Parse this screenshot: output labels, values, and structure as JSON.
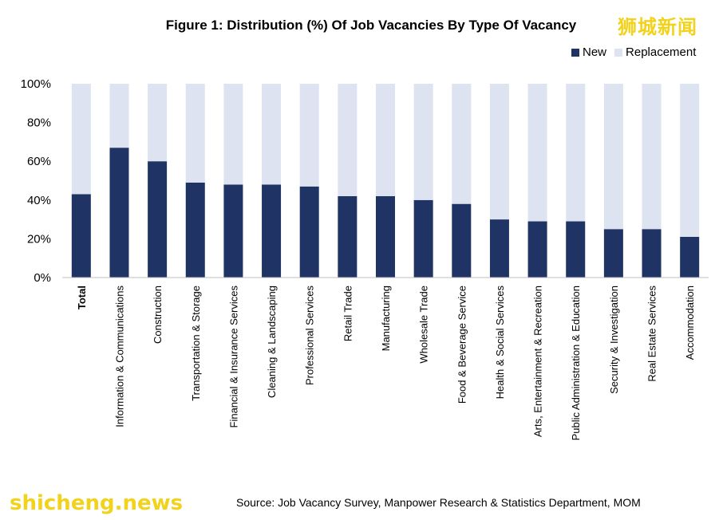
{
  "title": "Figure 1: Distribution (%) Of Job Vacancies By Type Of Vacancy",
  "watermark_top": "狮城新闻",
  "watermark_bottom": "shicheng.news",
  "source": "Source: Job Vacancy Survey, Manpower Research & Statistics Department, MOM",
  "colors": {
    "new": "#1f3364",
    "replacement": "#dde3f0"
  },
  "chart_data": {
    "type": "bar",
    "stacked": true,
    "title": "Figure 1: Distribution (%) Of Job Vacancies By Type Of Vacancy",
    "categories": [
      "Total",
      "Information & Communications",
      "Construction",
      "Transportation & Storage",
      "Financial & Insurance Services",
      "Cleaning & Landscaping",
      "Professional Services",
      "Retail Trade",
      "Manufacturing",
      "Wholesale Trade",
      "Food & Beverage Service",
      "Health & Social Services",
      "Arts, Entertainment & Recreation",
      "Public Administration & Education",
      "Security & Investigation",
      "Real Estate Services",
      "Accommodation"
    ],
    "series": [
      {
        "name": "New",
        "values": [
          43,
          67,
          60,
          49,
          48,
          48,
          47,
          42,
          42,
          40,
          38,
          30,
          29,
          29,
          25,
          25,
          21
        ]
      },
      {
        "name": "Replacement",
        "values": [
          57,
          33,
          40,
          51,
          52,
          52,
          53,
          58,
          58,
          60,
          62,
          70,
          71,
          71,
          75,
          75,
          79
        ]
      }
    ],
    "ylim": [
      0,
      100
    ],
    "yticks": [
      "0%",
      "20%",
      "40%",
      "60%",
      "80%",
      "100%"
    ],
    "legend_position": "top-right",
    "grid": false
  }
}
